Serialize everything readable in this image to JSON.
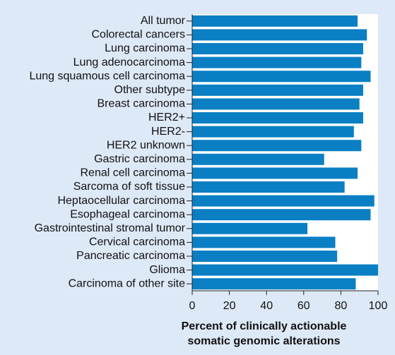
{
  "colors": {
    "background": "#dde9f6",
    "plot_background": "#ffffff",
    "bar": "#0a7fc4",
    "axis": "#222222"
  },
  "chart_data": {
    "type": "bar",
    "orientation": "horizontal",
    "categories": [
      "All tumor",
      "Colorectal cancers",
      "Lung carcinoma",
      "Lung adenocarcinoma",
      "Lung squamous cell carcinoma",
      "Other subtype",
      "Breast carcinoma",
      "HER2+",
      "HER2-",
      "HER2 unknown",
      "Gastric carcinoma",
      "Renal cell carcinoma",
      "Sarcoma of soft tissue",
      "Heptaocellular carcinoma",
      "Esophageal carcinoma",
      "Gastrointestinal stromal tumor",
      "Cervical carcinoma",
      "Pancreatic carcinoma",
      "Glioma",
      "Carcinoma of other site"
    ],
    "values": [
      89,
      94,
      92,
      91,
      96,
      92,
      90,
      92,
      87,
      91,
      71,
      89,
      82,
      98,
      96,
      62,
      77,
      78,
      100,
      88
    ],
    "xlim": [
      0,
      100
    ],
    "xticks": [
      "0",
      "20",
      "40",
      "60",
      "80",
      "100"
    ],
    "xlabel": [
      "Percent of clinically actionable",
      "somatic genomic alterations"
    ],
    "title": "",
    "grid": false
  }
}
